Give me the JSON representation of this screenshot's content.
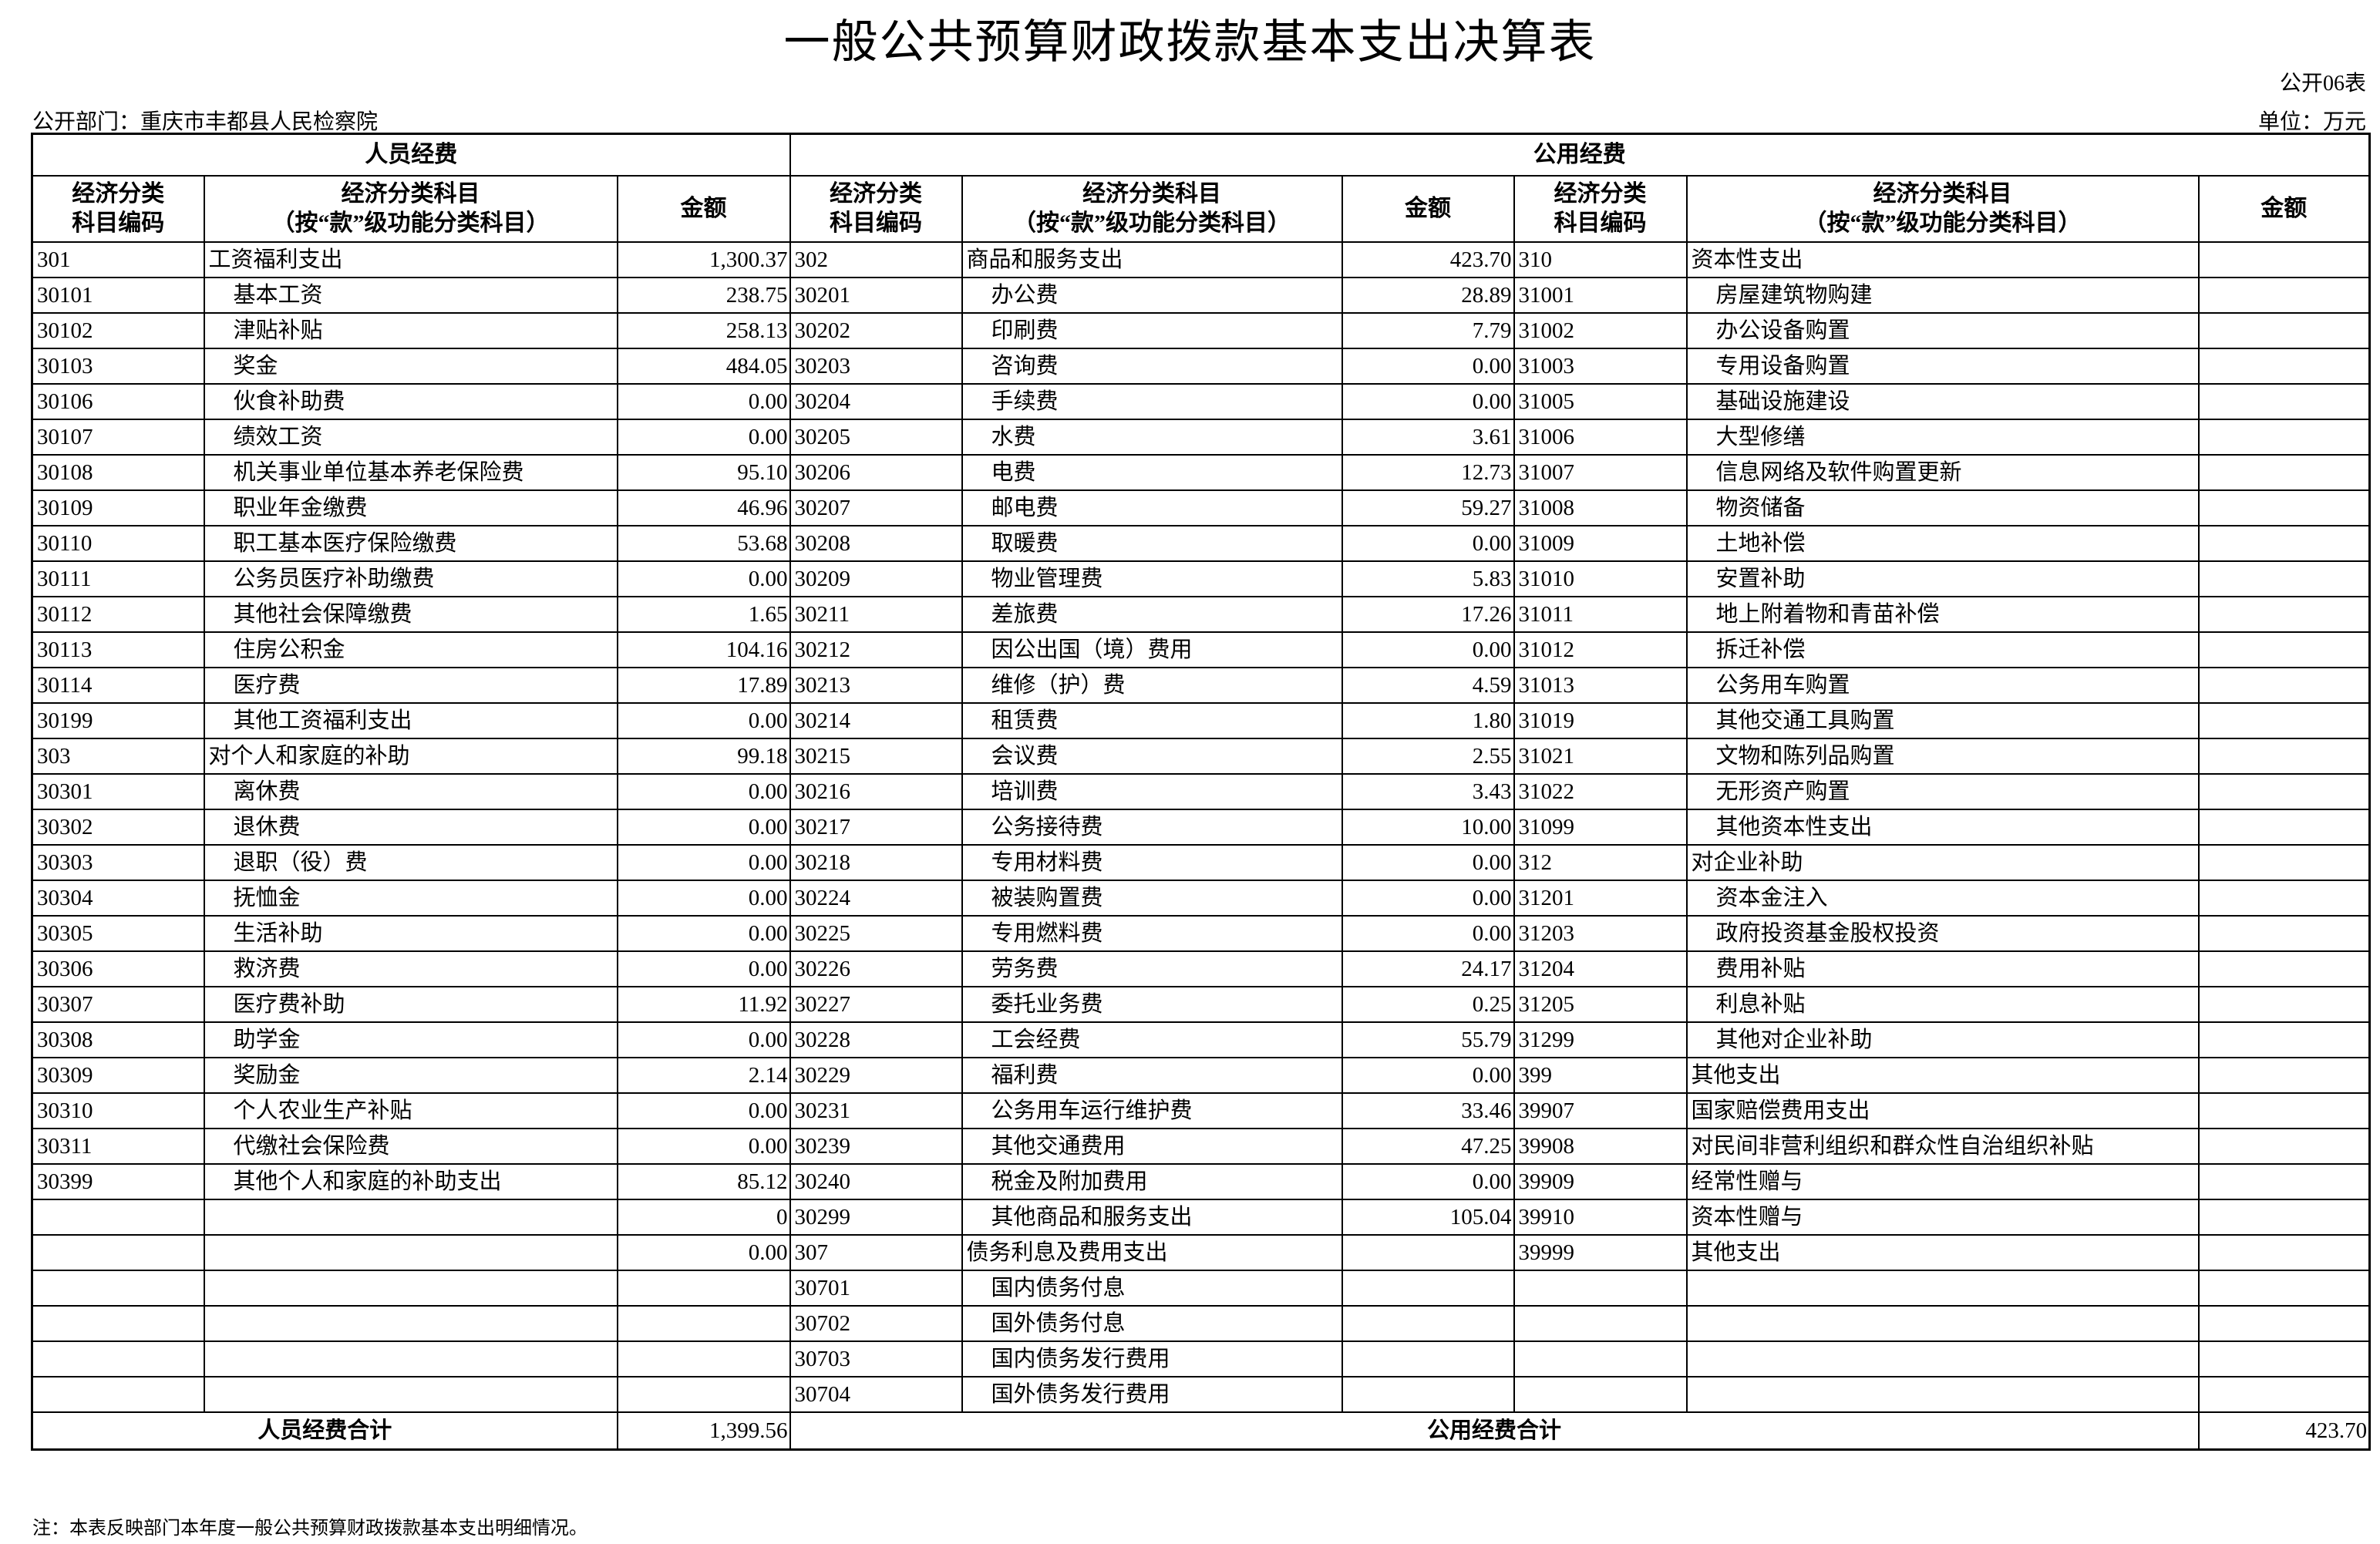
{
  "title": "一般公共预算财政拨款基本支出决算表",
  "form_no": "公开06表",
  "department": "公开部门：重庆市丰都县人民检察院",
  "unit": "单位：万元",
  "sections": {
    "personnel": "人员经费",
    "public": "公用经费"
  },
  "columns": {
    "code": "经济分类\n科目编码",
    "name": "经济分类科目\n（按“款”级功能分类科目）",
    "amount": "金额"
  },
  "rows": [
    [
      [
        "301",
        "工资福利支出",
        "1,300.37"
      ],
      [
        "302",
        "商品和服务支出",
        "423.70"
      ],
      [
        "310",
        "资本性支出",
        ""
      ]
    ],
    [
      [
        "30101",
        "基本工资",
        "238.75"
      ],
      [
        "30201",
        "办公费",
        "28.89"
      ],
      [
        "31001",
        "房屋建筑物购建",
        ""
      ]
    ],
    [
      [
        "30102",
        "津贴补贴",
        "258.13"
      ],
      [
        "30202",
        "印刷费",
        "7.79"
      ],
      [
        "31002",
        "办公设备购置",
        ""
      ]
    ],
    [
      [
        "30103",
        "奖金",
        "484.05"
      ],
      [
        "30203",
        "咨询费",
        "0.00"
      ],
      [
        "31003",
        "专用设备购置",
        ""
      ]
    ],
    [
      [
        "30106",
        "伙食补助费",
        "0.00"
      ],
      [
        "30204",
        "手续费",
        "0.00"
      ],
      [
        "31005",
        "基础设施建设",
        ""
      ]
    ],
    [
      [
        "30107",
        "绩效工资",
        "0.00"
      ],
      [
        "30205",
        "水费",
        "3.61"
      ],
      [
        "31006",
        "大型修缮",
        ""
      ]
    ],
    [
      [
        "30108",
        "机关事业单位基本养老保险费",
        "95.10"
      ],
      [
        "30206",
        "电费",
        "12.73"
      ],
      [
        "31007",
        "信息网络及软件购置更新",
        ""
      ]
    ],
    [
      [
        "30109",
        "职业年金缴费",
        "46.96"
      ],
      [
        "30207",
        "邮电费",
        "59.27"
      ],
      [
        "31008",
        "物资储备",
        ""
      ]
    ],
    [
      [
        "30110",
        "职工基本医疗保险缴费",
        "53.68"
      ],
      [
        "30208",
        "取暖费",
        "0.00"
      ],
      [
        "31009",
        "土地补偿",
        ""
      ]
    ],
    [
      [
        "30111",
        "公务员医疗补助缴费",
        "0.00"
      ],
      [
        "30209",
        "物业管理费",
        "5.83"
      ],
      [
        "31010",
        "安置补助",
        ""
      ]
    ],
    [
      [
        "30112",
        "其他社会保障缴费",
        "1.65"
      ],
      [
        "30211",
        "差旅费",
        "17.26"
      ],
      [
        "31011",
        "地上附着物和青苗补偿",
        ""
      ]
    ],
    [
      [
        "30113",
        "住房公积金",
        "104.16"
      ],
      [
        "30212",
        "因公出国（境）费用",
        "0.00"
      ],
      [
        "31012",
        "拆迁补偿",
        ""
      ]
    ],
    [
      [
        "30114",
        "医疗费",
        "17.89"
      ],
      [
        "30213",
        "维修（护）费",
        "4.59"
      ],
      [
        "31013",
        "公务用车购置",
        ""
      ]
    ],
    [
      [
        "30199",
        "其他工资福利支出",
        "0.00"
      ],
      [
        "30214",
        "租赁费",
        "1.80"
      ],
      [
        "31019",
        "其他交通工具购置",
        ""
      ]
    ],
    [
      [
        "303",
        "对个人和家庭的补助",
        "99.18"
      ],
      [
        "30215",
        "会议费",
        "2.55"
      ],
      [
        "31021",
        "文物和陈列品购置",
        ""
      ]
    ],
    [
      [
        "30301",
        "离休费",
        "0.00"
      ],
      [
        "30216",
        "培训费",
        "3.43"
      ],
      [
        "31022",
        "无形资产购置",
        ""
      ]
    ],
    [
      [
        "30302",
        "退休费",
        "0.00"
      ],
      [
        "30217",
        "公务接待费",
        "10.00"
      ],
      [
        "31099",
        "其他资本性支出",
        ""
      ]
    ],
    [
      [
        "30303",
        "退职（役）费",
        "0.00"
      ],
      [
        "30218",
        "专用材料费",
        "0.00"
      ],
      [
        "312",
        "对企业补助",
        ""
      ]
    ],
    [
      [
        "30304",
        "抚恤金",
        "0.00"
      ],
      [
        "30224",
        "被装购置费",
        "0.00"
      ],
      [
        "31201",
        "资本金注入",
        ""
      ]
    ],
    [
      [
        "30305",
        "生活补助",
        "0.00"
      ],
      [
        "30225",
        "专用燃料费",
        "0.00"
      ],
      [
        "31203",
        "政府投资基金股权投资",
        ""
      ]
    ],
    [
      [
        "30306",
        "救济费",
        "0.00"
      ],
      [
        "30226",
        "劳务费",
        "24.17"
      ],
      [
        "31204",
        "费用补贴",
        ""
      ]
    ],
    [
      [
        "30307",
        "医疗费补助",
        "11.92"
      ],
      [
        "30227",
        "委托业务费",
        "0.25"
      ],
      [
        "31205",
        "利息补贴",
        ""
      ]
    ],
    [
      [
        "30308",
        "助学金",
        "0.00"
      ],
      [
        "30228",
        "工会经费",
        "55.79"
      ],
      [
        "31299",
        "其他对企业补助",
        ""
      ]
    ],
    [
      [
        "30309",
        "奖励金",
        "2.14"
      ],
      [
        "30229",
        "福利费",
        "0.00"
      ],
      [
        "399",
        "其他支出",
        ""
      ]
    ],
    [
      [
        "30310",
        "个人农业生产补贴",
        "0.00"
      ],
      [
        "30231",
        "公务用车运行维护费",
        "33.46"
      ],
      [
        "39907",
        "国家赔偿费用支出",
        ""
      ]
    ],
    [
      [
        "30311",
        "代缴社会保险费",
        "0.00"
      ],
      [
        "30239",
        "其他交通费用",
        "47.25"
      ],
      [
        "39908",
        "对民间非营利组织和群众性自治组织补贴",
        ""
      ]
    ],
    [
      [
        "30399",
        "其他个人和家庭的补助支出",
        "85.12"
      ],
      [
        "30240",
        "税金及附加费用",
        "0.00"
      ],
      [
        "39909",
        "经常性赠与",
        ""
      ]
    ],
    [
      [
        "",
        "",
        "0"
      ],
      [
        "30299",
        "其他商品和服务支出",
        "105.04"
      ],
      [
        "39910",
        "资本性赠与",
        ""
      ]
    ],
    [
      [
        "",
        "",
        "0.00"
      ],
      [
        "307",
        "债务利息及费用支出",
        ""
      ],
      [
        "39999",
        "其他支出",
        ""
      ]
    ],
    [
      [
        "",
        "",
        ""
      ],
      [
        "30701",
        "国内债务付息",
        ""
      ],
      [
        "",
        "",
        ""
      ]
    ],
    [
      [
        "",
        "",
        ""
      ],
      [
        "30702",
        "国外债务付息",
        ""
      ],
      [
        "",
        "",
        ""
      ]
    ],
    [
      [
        "",
        "",
        ""
      ],
      [
        "30703",
        "国内债务发行费用",
        ""
      ],
      [
        "",
        "",
        ""
      ]
    ],
    [
      [
        "",
        "",
        ""
      ],
      [
        "30704",
        "国外债务发行费用",
        ""
      ],
      [
        "",
        "",
        ""
      ]
    ]
  ],
  "totals": {
    "personnel_label": "人员经费合计",
    "personnel_amount": "1,399.56",
    "public_label": "公用经费合计",
    "public_amount": "423.70"
  },
  "note": "注：本表反映部门本年度一般公共预算财政拨款基本支出明细情况。"
}
